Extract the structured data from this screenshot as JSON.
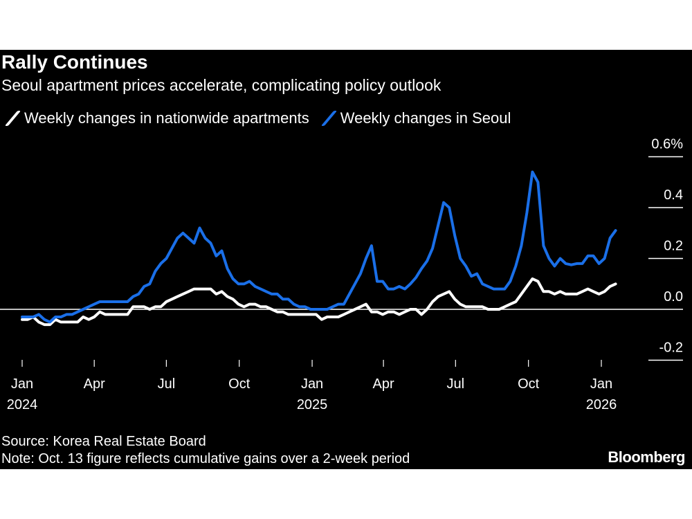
{
  "title": "Rally Continues",
  "subtitle": "Seoul apartment prices accelerate, complicating policy outlook",
  "source": "Source: Korea Real Estate Board",
  "note": "Note: Oct. 13 figure reflects cumulative gains over a 2-week period",
  "logo": "Bloomberg",
  "chart_data": {
    "type": "line",
    "title": "Rally Continues",
    "subtitle": "Seoul apartment prices accelerate, complicating policy outlook",
    "legend_placement": "top-left",
    "grid": false,
    "ylim": [
      -0.2,
      0.6
    ],
    "y_ticks": [
      {
        "value": 0.6,
        "label": "0.6%"
      },
      {
        "value": 0.4,
        "label": "0.4"
      },
      {
        "value": 0.2,
        "label": "0.2"
      },
      {
        "value": 0.0,
        "label": "0.0"
      },
      {
        "value": -0.2,
        "label": "-0.2"
      }
    ],
    "x_ticks": [
      {
        "date": "2024-01-01",
        "label": "Jan",
        "year": "2024"
      },
      {
        "date": "2024-04-01",
        "label": "Apr",
        "year": ""
      },
      {
        "date": "2024-07-01",
        "label": "Jul",
        "year": ""
      },
      {
        "date": "2024-10-01",
        "label": "Oct",
        "year": ""
      },
      {
        "date": "2025-01-01",
        "label": "Jan",
        "year": "2025"
      },
      {
        "date": "2025-04-01",
        "label": "Apr",
        "year": ""
      },
      {
        "date": "2025-07-01",
        "label": "Jul",
        "year": ""
      },
      {
        "date": "2025-10-01",
        "label": "Oct",
        "year": ""
      },
      {
        "date": "2026-01-01",
        "label": "Jan",
        "year": "2026"
      }
    ],
    "x": [
      "2024-01-01",
      "2024-01-08",
      "2024-01-15",
      "2024-01-22",
      "2024-01-29",
      "2024-02-05",
      "2024-02-12",
      "2024-02-19",
      "2024-02-26",
      "2024-03-04",
      "2024-03-11",
      "2024-03-18",
      "2024-03-25",
      "2024-04-01",
      "2024-04-08",
      "2024-04-15",
      "2024-04-22",
      "2024-04-29",
      "2024-05-06",
      "2024-05-13",
      "2024-05-20",
      "2024-05-27",
      "2024-06-03",
      "2024-06-10",
      "2024-06-17",
      "2024-06-24",
      "2024-07-01",
      "2024-07-08",
      "2024-07-15",
      "2024-07-22",
      "2024-07-29",
      "2024-08-05",
      "2024-08-12",
      "2024-08-19",
      "2024-08-26",
      "2024-09-02",
      "2024-09-09",
      "2024-09-16",
      "2024-09-23",
      "2024-09-30",
      "2024-10-07",
      "2024-10-14",
      "2024-10-21",
      "2024-10-28",
      "2024-11-04",
      "2024-11-11",
      "2024-11-18",
      "2024-11-25",
      "2024-12-02",
      "2024-12-09",
      "2024-12-16",
      "2024-12-23",
      "2024-12-30",
      "2025-01-06",
      "2025-01-13",
      "2025-01-20",
      "2025-01-27",
      "2025-02-03",
      "2025-02-10",
      "2025-02-17",
      "2025-02-24",
      "2025-03-03",
      "2025-03-10",
      "2025-03-17",
      "2025-03-24",
      "2025-03-31",
      "2025-04-07",
      "2025-04-14",
      "2025-04-21",
      "2025-04-28",
      "2025-05-05",
      "2025-05-12",
      "2025-05-19",
      "2025-05-26",
      "2025-06-02",
      "2025-06-09",
      "2025-06-16",
      "2025-06-23",
      "2025-06-30",
      "2025-07-07",
      "2025-07-14",
      "2025-07-21",
      "2025-07-28",
      "2025-08-04",
      "2025-08-11",
      "2025-08-18",
      "2025-08-25",
      "2025-09-01",
      "2025-09-08",
      "2025-09-15",
      "2025-09-22",
      "2025-09-29",
      "2025-10-06",
      "2025-10-13",
      "2025-10-20",
      "2025-10-27",
      "2025-11-03",
      "2025-11-10",
      "2025-11-17",
      "2025-11-24",
      "2025-12-01",
      "2025-12-08",
      "2025-12-15",
      "2025-12-22",
      "2025-12-29",
      "2026-01-05",
      "2026-01-12",
      "2026-01-19"
    ],
    "series": [
      {
        "name": "Weekly changes in nationwide apartments",
        "color": "#ffffff",
        "values": [
          -0.04,
          -0.04,
          -0.03,
          -0.05,
          -0.06,
          -0.06,
          -0.04,
          -0.05,
          -0.05,
          -0.05,
          -0.05,
          -0.03,
          -0.04,
          -0.03,
          -0.01,
          -0.02,
          -0.02,
          -0.02,
          -0.02,
          -0.02,
          0.01,
          0.01,
          0.01,
          0.0,
          0.01,
          0.01,
          0.03,
          0.04,
          0.05,
          0.06,
          0.07,
          0.08,
          0.08,
          0.08,
          0.08,
          0.06,
          0.07,
          0.05,
          0.04,
          0.02,
          0.01,
          0.02,
          0.02,
          0.01,
          0.01,
          0.0,
          -0.01,
          -0.01,
          -0.02,
          -0.02,
          -0.02,
          -0.02,
          -0.02,
          -0.02,
          -0.04,
          -0.03,
          -0.03,
          -0.03,
          -0.02,
          -0.01,
          0.0,
          0.01,
          0.02,
          -0.01,
          -0.01,
          -0.02,
          -0.01,
          -0.01,
          -0.02,
          -0.01,
          0.0,
          0.0,
          -0.02,
          0.0,
          0.03,
          0.05,
          0.06,
          0.07,
          0.04,
          0.02,
          0.01,
          0.01,
          0.01,
          0.01,
          0.0,
          0.0,
          0.0,
          0.01,
          0.02,
          0.03,
          0.06,
          0.09,
          0.12,
          0.11,
          0.07,
          0.07,
          0.06,
          0.07,
          0.06,
          0.06,
          0.06,
          0.07,
          0.08,
          0.07,
          0.06,
          0.07,
          0.09,
          0.1
        ]
      },
      {
        "name": "Weekly changes in Seoul",
        "color": "#1a6fe8",
        "values": [
          -0.03,
          -0.03,
          -0.03,
          -0.02,
          -0.04,
          -0.05,
          -0.03,
          -0.03,
          -0.02,
          -0.02,
          -0.01,
          0.0,
          0.01,
          0.02,
          0.03,
          0.03,
          0.03,
          0.03,
          0.03,
          0.03,
          0.05,
          0.06,
          0.09,
          0.1,
          0.15,
          0.18,
          0.2,
          0.24,
          0.28,
          0.3,
          0.28,
          0.26,
          0.32,
          0.28,
          0.26,
          0.21,
          0.23,
          0.16,
          0.12,
          0.1,
          0.1,
          0.11,
          0.09,
          0.08,
          0.07,
          0.06,
          0.06,
          0.04,
          0.04,
          0.02,
          0.01,
          0.01,
          0.0,
          0.0,
          0.0,
          0.0,
          0.01,
          0.02,
          0.02,
          0.06,
          0.1,
          0.14,
          0.2,
          0.25,
          0.11,
          0.11,
          0.08,
          0.08,
          0.09,
          0.08,
          0.1,
          0.125,
          0.16,
          0.19,
          0.24,
          0.33,
          0.42,
          0.4,
          0.29,
          0.2,
          0.17,
          0.13,
          0.14,
          0.1,
          0.09,
          0.08,
          0.08,
          0.08,
          0.11,
          0.17,
          0.25,
          0.38,
          0.54,
          0.5,
          0.25,
          0.2,
          0.17,
          0.2,
          0.18,
          0.175,
          0.18,
          0.18,
          0.21,
          0.21,
          0.18,
          0.2,
          0.28,
          0.31
        ]
      }
    ]
  }
}
